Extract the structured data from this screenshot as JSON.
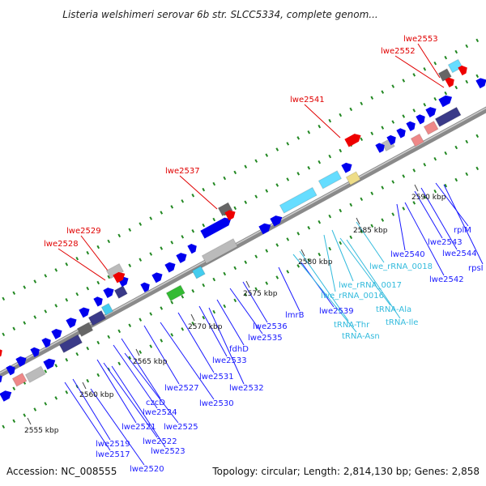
{
  "header": {
    "title": "Listeria welshimeri serovar 6b str. SLCC5334, complete genom..."
  },
  "footer": {
    "accession": "Accession: NC_008555",
    "summary": "Topology: circular; Length: 2,814,130 bp; Genes: 2,858"
  },
  "colors": {
    "backbone": "#8a8a8a",
    "cds_blue": "#0000ee",
    "navy": "#3a3a88",
    "cyan": "#44ccee",
    "light_cyan": "#66ddff",
    "red": "#ee0000",
    "pink": "#ee8888",
    "grey": "#bbbbbb",
    "dark_grey": "#666666",
    "green": "#33bb33",
    "yellow": "#eedd88",
    "tick": "#228822",
    "label_red": "#e00000",
    "label_blue": "#1a1aff",
    "label_cyan": "#33bbdd"
  },
  "scale": {
    "ticks": [
      "2555 kbp",
      "2560 kbp",
      "2565 kbp",
      "2570 kbp",
      "2575 kbp",
      "2580 kbp",
      "2585 kbp",
      "2590 kbp"
    ]
  },
  "labels": {
    "red": [
      "lwe2553",
      "lwe2552",
      "lwe2541",
      "lwe2537",
      "lwe2529",
      "lwe2528"
    ],
    "blue": [
      "rplM",
      "lwe2543",
      "lwe2544",
      "rpsI",
      "lwe2540",
      "lwe2542",
      "lmrB",
      "lwe2536",
      "lwe2539",
      "lwe2535",
      "fdhD",
      "lwe2533",
      "lwe2531",
      "lwe2532",
      "lwe2527",
      "lwe2530",
      "czcD",
      "lwe2524",
      "lwe2525",
      "lwe2521",
      "lwe2522",
      "lwe2523",
      "lwe2519",
      "lwe2517",
      "lwe2520"
    ],
    "cyan": [
      "lwe_rRNA_0018",
      "lwe_rRNA_0017",
      "lwe_rRNA_0016",
      "tRNA-Ala",
      "tRNA-Ile",
      "tRNA-Thr",
      "tRNA-Asn"
    ]
  }
}
